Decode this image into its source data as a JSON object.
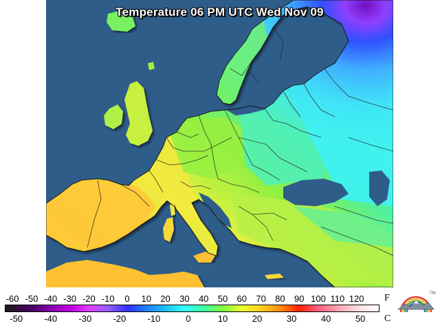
{
  "title": "Temperature 06 PM UTC Wed Nov 09",
  "legend": {
    "fahrenheit_unit": "F",
    "celsius_unit": "C",
    "fahrenheit_ticks": [
      "-60",
      "-50",
      "-40",
      "-30",
      "-20",
      "-10",
      "0",
      "10",
      "20",
      "30",
      "40",
      "50",
      "60",
      "70",
      "80",
      "90",
      "100",
      "110",
      "120"
    ],
    "celsius_ticks": [
      "-50",
      "-40",
      "-30",
      "-20",
      "-10",
      "0",
      "10",
      "20",
      "30",
      "40",
      "50"
    ],
    "fahrenheit_values": [
      -60,
      -50,
      -40,
      -30,
      -20,
      -10,
      0,
      10,
      20,
      30,
      40,
      50,
      60,
      70,
      80,
      90,
      100,
      110,
      120
    ],
    "celsius_values": [
      -50,
      -40,
      -30,
      -20,
      -10,
      0,
      10,
      20,
      30,
      40,
      50
    ],
    "scale_range_f": [
      -64,
      132
    ],
    "color_stops": [
      {
        "f": -64,
        "color": "#1a1a1a"
      },
      {
        "f": -50,
        "color": "#4a0066"
      },
      {
        "f": -40,
        "color": "#8a00b0"
      },
      {
        "f": -30,
        "color": "#c000e0"
      },
      {
        "f": -20,
        "color": "#e040ff"
      },
      {
        "f": -10,
        "color": "#9060ff"
      },
      {
        "f": 0,
        "color": "#3030ff"
      },
      {
        "f": 10,
        "color": "#2080ff"
      },
      {
        "f": 20,
        "color": "#20c0ff"
      },
      {
        "f": 30,
        "color": "#30ffff"
      },
      {
        "f": 40,
        "color": "#40ffa0"
      },
      {
        "f": 50,
        "color": "#80ff40"
      },
      {
        "f": 60,
        "color": "#e8ff30"
      },
      {
        "f": 70,
        "color": "#ffd020"
      },
      {
        "f": 80,
        "color": "#ff9010"
      },
      {
        "f": 90,
        "color": "#ff2000"
      },
      {
        "f": 100,
        "color": "#ff6080"
      },
      {
        "f": 110,
        "color": "#ffa0b0"
      },
      {
        "f": 120,
        "color": "#ffd8e0"
      },
      {
        "f": 132,
        "color": "#ffffff"
      }
    ]
  },
  "colors": {
    "sea": "#2f5d8a",
    "cold_blue": "#5ad2f5",
    "cyan": "#40f0f0",
    "cool_green": "#50f0a0",
    "green": "#90f040",
    "yellow_green": "#d8f040",
    "yellow": "#f8e040",
    "orange": "#ffc030",
    "purple": "#9040ff",
    "deep_violet": "#7010c0"
  }
}
